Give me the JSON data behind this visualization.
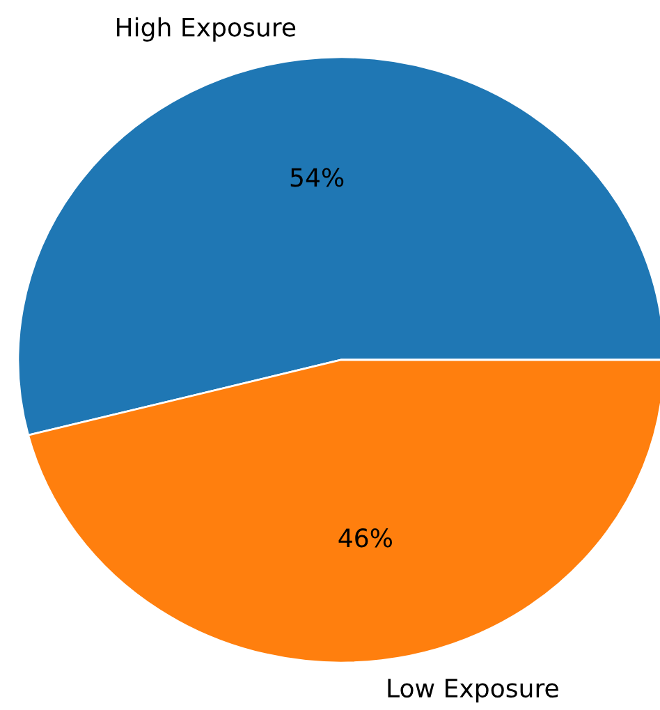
{
  "chart_data": {
    "type": "pie",
    "categories": [
      "High Exposure",
      "Low Exposure"
    ],
    "values": [
      54,
      46
    ],
    "colors": [
      "#1f77b4",
      "#ff7f0e"
    ],
    "value_labels": [
      "54%",
      "46%"
    ]
  }
}
